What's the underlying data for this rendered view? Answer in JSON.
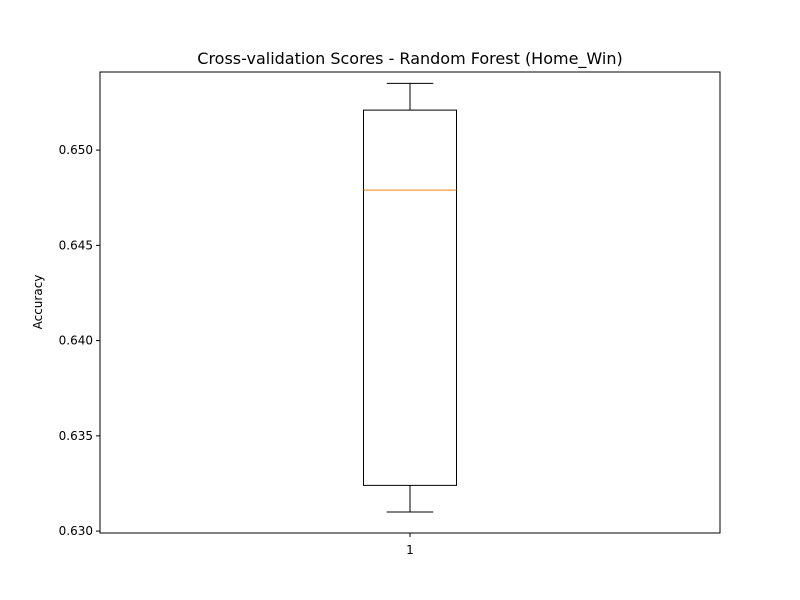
{
  "chart_data": {
    "type": "box",
    "title": "Cross-validation Scores - Random Forest (Home_Win)",
    "xlabel": "",
    "ylabel": "Accuracy",
    "ylim": [
      0.6299,
      0.6541
    ],
    "yticks": [
      "0.630",
      "0.635",
      "0.640",
      "0.645",
      "0.650"
    ],
    "categories": [
      "1"
    ],
    "boxes": [
      {
        "category": "1",
        "whisker_low": 0.631,
        "q1": 0.6324,
        "median": 0.6479,
        "q3": 0.6521,
        "whisker_high": 0.6535
      }
    ],
    "grid": false,
    "colors": {
      "median": "#ff7f0e",
      "box": "#000000"
    }
  }
}
